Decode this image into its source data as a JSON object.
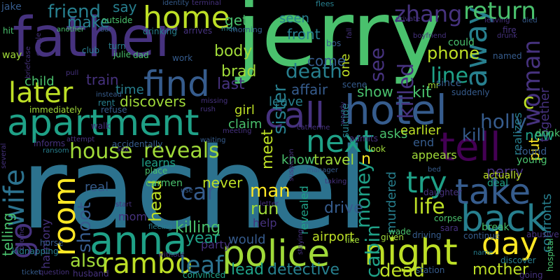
{
  "background": "#000000",
  "palette": [
    "#440154",
    "#46327e",
    "#365c8d",
    "#277f8e",
    "#1fa187",
    "#4ac16d",
    "#a0da39",
    "#fde725"
  ],
  "words": [
    {
      "text": "rachel",
      "color": "#2c728e"
    },
    {
      "text": "jerry",
      "color": "#4ac16d"
    },
    {
      "text": "father",
      "color": "#46327e"
    },
    {
      "text": "apartment",
      "color": "#1fa187"
    },
    {
      "text": "hotel",
      "color": "#365c8d"
    },
    {
      "text": "police",
      "color": "#a0da39"
    },
    {
      "text": "anna",
      "color": "#1fa187"
    },
    {
      "text": "night",
      "color": "#bddf26"
    },
    {
      "text": "tell",
      "color": "#440154"
    },
    {
      "text": "call",
      "color": "#46327e"
    },
    {
      "text": "take",
      "color": "#365c8d"
    },
    {
      "text": "back",
      "color": "#277f8e"
    },
    {
      "text": "later",
      "color": "#bddf26"
    },
    {
      "text": "find",
      "color": "#365c8d"
    },
    {
      "text": "home",
      "color": "#bddf26"
    },
    {
      "text": "next",
      "color": "#1fa187"
    },
    {
      "text": "room",
      "color": "#fde725"
    },
    {
      "text": "day",
      "color": "#fde725"
    },
    {
      "text": "away",
      "color": "#277f8e"
    },
    {
      "text": "go",
      "color": "#46327e"
    },
    {
      "text": "return",
      "color": "#4ac16d"
    },
    {
      "text": "woman",
      "color": "#46327e"
    },
    {
      "text": "try",
      "color": "#1fa187"
    },
    {
      "text": "wife",
      "color": "#2c728e"
    },
    {
      "text": "rambo",
      "color": "#bddf26"
    },
    {
      "text": "death",
      "color": "#277f8e"
    },
    {
      "text": "zhang",
      "color": "#46327e"
    },
    {
      "text": "friend",
      "color": "#277f8e"
    },
    {
      "text": "killed",
      "color": "#46327e"
    },
    {
      "text": "house",
      "color": "#a0da39"
    },
    {
      "text": "reveals",
      "color": "#a0da39"
    },
    {
      "text": "car",
      "color": "#365c8d"
    },
    {
      "text": "money",
      "color": "#1fa187"
    },
    {
      "text": "cabin",
      "color": "#1fa187"
    },
    {
      "text": "life",
      "color": "#bddf26"
    },
    {
      "text": "leaf",
      "color": "#2c728e"
    },
    {
      "text": "shoot",
      "color": "#365c8d"
    },
    {
      "text": "sister",
      "color": "#277f8e"
    },
    {
      "text": "see",
      "color": "#46327e"
    },
    {
      "text": "phone",
      "color": "#bddf26"
    },
    {
      "text": "line",
      "color": "#1fa187"
    },
    {
      "text": "holly",
      "color": "#365c8d"
    },
    {
      "text": "kill",
      "color": "#365c8d"
    },
    {
      "text": "c",
      "color": "#bddf26"
    },
    {
      "text": "also",
      "color": "#a0da39"
    },
    {
      "text": "detective",
      "color": "#277f8e"
    },
    {
      "text": "dead",
      "color": "#bddf26"
    },
    {
      "text": "drive",
      "color": "#365c8d"
    },
    {
      "text": "man",
      "color": "#fde725"
    },
    {
      "text": "head",
      "color": "#bddf26"
    },
    {
      "text": "killing",
      "color": "#4ac16d"
    },
    {
      "text": "run",
      "color": "#a0da39"
    },
    {
      "text": "lead",
      "color": "#1fa187"
    },
    {
      "text": "mother",
      "color": "#bddf26"
    },
    {
      "text": "perry",
      "color": "#46327e"
    },
    {
      "text": "confronts",
      "color": "#277f8e"
    },
    {
      "text": "together",
      "color": "#46327e"
    },
    {
      "text": "body",
      "color": "#a0da39"
    },
    {
      "text": "brad",
      "color": "#a0da39"
    },
    {
      "text": "last",
      "color": "#46327e"
    },
    {
      "text": "train",
      "color": "#46327e"
    },
    {
      "text": "discovers",
      "color": "#a0da39"
    },
    {
      "text": "make",
      "color": "#277f8e"
    },
    {
      "text": "say",
      "color": "#277f8e"
    },
    {
      "text": "get",
      "color": "#4ac16d"
    },
    {
      "text": "seen",
      "color": "#277f8e"
    },
    {
      "text": "front",
      "color": "#277f8e"
    },
    {
      "text": "one",
      "color": "#bddf26"
    },
    {
      "text": "come",
      "color": "#365c8d"
    },
    {
      "text": "affair",
      "color": "#365c8d"
    },
    {
      "text": "show",
      "color": "#4ac16d"
    },
    {
      "text": "kit",
      "color": "#4ac16d"
    },
    {
      "text": "new",
      "color": "#1fa187"
    },
    {
      "text": "meet",
      "color": "#bddf26"
    },
    {
      "text": "know",
      "color": "#4ac16d"
    },
    {
      "text": "travel",
      "color": "#a0da39"
    },
    {
      "text": "n",
      "color": "#fde725"
    },
    {
      "text": "end",
      "color": "#365c8d"
    },
    {
      "text": "asks",
      "color": "#4ac16d"
    },
    {
      "text": "earlier",
      "color": "#bddf26"
    },
    {
      "text": "appears",
      "color": "#a0da39"
    },
    {
      "text": "actually",
      "color": "#bddf26"
    },
    {
      "text": "deal",
      "color": "#1fa187"
    },
    {
      "text": "never",
      "color": "#bddf26"
    },
    {
      "text": "year",
      "color": "#1fa187"
    },
    {
      "text": "party",
      "color": "#46327e"
    },
    {
      "text": "would",
      "color": "#365c8d"
    },
    {
      "text": "airport",
      "color": "#bddf26"
    },
    {
      "text": "revealed",
      "color": "#1fa187"
    },
    {
      "text": "murdered",
      "color": "#277f8e"
    },
    {
      "text": "harmony",
      "color": "#46327e"
    },
    {
      "text": "telling",
      "color": "#4ac16d"
    },
    {
      "text": "real",
      "color": "#365c8d"
    },
    {
      "text": "child",
      "color": "#4ac16d"
    },
    {
      "text": "time",
      "color": "#277f8e"
    },
    {
      "text": "girl",
      "color": "#bddf26"
    },
    {
      "text": "claim",
      "color": "#4ac16d"
    },
    {
      "text": "leave",
      "color": "#277f8e"
    },
    {
      "text": "help",
      "color": "#46327e"
    },
    {
      "text": "learns",
      "color": "#1fa187"
    },
    {
      "text": "carmen",
      "color": "#4ac16d"
    },
    {
      "text": "mom",
      "color": "#46327e"
    },
    {
      "text": "jake",
      "color": "#365c8d"
    },
    {
      "text": "hit",
      "color": "#4ac16d"
    },
    {
      "text": "way",
      "color": "#a0da39"
    },
    {
      "text": "identity",
      "color": "#365c8d"
    },
    {
      "text": "terminal",
      "color": "#46327e"
    },
    {
      "text": "flees",
      "color": "#277f8e"
    },
    {
      "text": "outside",
      "color": "#4ac16d"
    },
    {
      "text": "drinking",
      "color": "#277f8e"
    },
    {
      "text": "arrives",
      "color": "#46327e"
    },
    {
      "text": "morning",
      "color": "#365c8d"
    },
    {
      "text": "club",
      "color": "#277f8e"
    },
    {
      "text": "bar",
      "color": "#365c8d"
    },
    {
      "text": "turn",
      "color": "#277f8e"
    },
    {
      "text": "julie",
      "color": "#4ac16d"
    },
    {
      "text": "dad",
      "color": "#4ac16d"
    },
    {
      "text": "work",
      "color": "#365c8d"
    },
    {
      "text": "another",
      "color": "#4ac16d"
    },
    {
      "text": "pull",
      "color": "#46327e"
    },
    {
      "text": "instead",
      "color": "#365c8d"
    },
    {
      "text": "rent",
      "color": "#277f8e"
    },
    {
      "text": "refuse",
      "color": "#365c8d"
    },
    {
      "text": "immediately",
      "color": "#a0da39"
    },
    {
      "text": "walk",
      "color": "#46327e"
    },
    {
      "text": "informs",
      "color": "#46327e"
    },
    {
      "text": "attempt",
      "color": "#46327e"
    },
    {
      "text": "accidentally",
      "color": "#365c8d"
    },
    {
      "text": "ransom",
      "color": "#277f8e"
    },
    {
      "text": "sex",
      "color": "#46327e"
    },
    {
      "text": "waiting",
      "color": "#365c8d"
    },
    {
      "text": "place",
      "color": "#4ac16d"
    },
    {
      "text": "use",
      "color": "#365c8d"
    },
    {
      "text": "start",
      "color": "#46327e"
    },
    {
      "text": "fleeing",
      "color": "#277f8e"
    },
    {
      "text": "without",
      "color": "#46327e"
    },
    {
      "text": "husband",
      "color": "#46327e"
    },
    {
      "text": "question",
      "color": "#46327e"
    },
    {
      "text": "ticket",
      "color": "#365c8d"
    },
    {
      "text": "convinced",
      "color": "#1fa187"
    },
    {
      "text": "horse",
      "color": "#365c8d"
    },
    {
      "text": "kidnapping",
      "color": "#277f8e"
    },
    {
      "text": "brother",
      "color": "#46327e"
    },
    {
      "text": "several",
      "color": "#46327e"
    },
    {
      "text": "couple",
      "color": "#46327e"
    },
    {
      "text": "briefcase",
      "color": "#46327e"
    },
    {
      "text": "men",
      "color": "#277f8e"
    },
    {
      "text": "bos",
      "color": "#365c8d"
    },
    {
      "text": "fall",
      "color": "#46327e"
    },
    {
      "text": "woody",
      "color": "#46327e"
    },
    {
      "text": "scene",
      "color": "#365c8d"
    },
    {
      "text": "suicide",
      "color": "#277f8e"
    },
    {
      "text": "mr",
      "color": "#a0da39"
    },
    {
      "text": "since",
      "color": "#365c8d"
    },
    {
      "text": "suddenly",
      "color": "#365c8d"
    },
    {
      "text": "could",
      "color": "#4ac16d"
    },
    {
      "text": "named",
      "color": "#365c8d"
    },
    {
      "text": "private",
      "color": "#46327e"
    },
    {
      "text": "leaving",
      "color": "#46327e"
    },
    {
      "text": "died",
      "color": "#365c8d"
    },
    {
      "text": "fire",
      "color": "#46327e"
    },
    {
      "text": "boyfriend",
      "color": "#46327e"
    },
    {
      "text": "drunk",
      "color": "#46327e"
    },
    {
      "text": "realizes",
      "color": "#277f8e"
    },
    {
      "text": "put",
      "color": "#fde725"
    },
    {
      "text": "drink",
      "color": "#4ac16d"
    },
    {
      "text": "found",
      "color": "#365c8d"
    },
    {
      "text": "young",
      "color": "#4ac16d"
    },
    {
      "text": "bed",
      "color": "#365c8d"
    },
    {
      "text": "manager",
      "color": "#365c8d"
    },
    {
      "text": "look",
      "color": "#a0da39"
    },
    {
      "text": "admits",
      "color": "#46327e"
    },
    {
      "text": "meeting",
      "color": "#46327e"
    },
    {
      "text": "catherine",
      "color": "#46327e"
    },
    {
      "text": "missing",
      "color": "#46327e"
    },
    {
      "text": "rush",
      "color": "#46327e"
    },
    {
      "text": "suspicion",
      "color": "#46327e"
    },
    {
      "text": "letter",
      "color": "#46327e"
    },
    {
      "text": "taking",
      "color": "#46327e"
    },
    {
      "text": "staying",
      "color": "#46327e"
    },
    {
      "text": "like",
      "color": "#a0da39"
    },
    {
      "text": "given",
      "color": "#a0da39"
    },
    {
      "text": "wade",
      "color": "#4ac16d"
    },
    {
      "text": "driving",
      "color": "#365c8d"
    },
    {
      "text": "corpse",
      "color": "#4ac16d"
    },
    {
      "text": "sara",
      "color": "#46327e"
    },
    {
      "text": "station",
      "color": "#365c8d"
    },
    {
      "text": "daughter",
      "color": "#46327e"
    },
    {
      "text": "break",
      "color": "#4ac16d"
    },
    {
      "text": "continue",
      "color": "#365c8d"
    },
    {
      "text": "name",
      "color": "#277f8e"
    },
    {
      "text": "abusive",
      "color": "#46327e"
    },
    {
      "text": "discover",
      "color": "#277f8e"
    },
    {
      "text": "going",
      "color": "#46327e"
    },
    {
      "text": "hospital",
      "color": "#4ac16d"
    }
  ]
}
